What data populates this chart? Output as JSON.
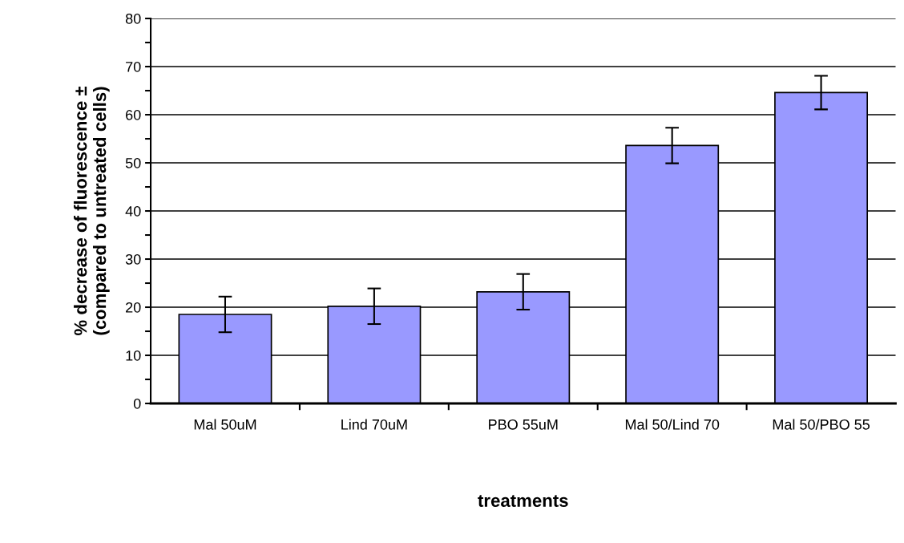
{
  "chart_data": {
    "type": "bar",
    "xlabel": "treatments",
    "ylabel": "% decrease of fluorescence ±\n(compared to untreated cells)",
    "categories": [
      "Mal 50uM",
      "Lind 70uM",
      "PBO 55uM",
      "Mal 50/Lind 70",
      "Mal 50/PBO 55"
    ],
    "values": [
      18.5,
      20.2,
      23.2,
      53.6,
      64.6
    ],
    "errors": [
      3.7,
      3.7,
      3.7,
      3.7,
      3.5
    ],
    "color": "#9999ff",
    "ylim": [
      0,
      80
    ],
    "yticks": [
      0,
      {
        "value": 5,
        "label": null
      },
      10,
      {
        "value": 15,
        "label": null
      },
      20,
      {
        "value": 25,
        "label": null
      },
      30,
      {
        "value": 35,
        "label": null
      },
      40,
      {
        "value": 45,
        "label": null
      },
      50,
      {
        "value": 55,
        "label": null
      },
      60,
      {
        "value": 65,
        "label": null
      },
      70,
      {
        "value": 75,
        "label": null
      },
      80
    ],
    "grid": "y"
  }
}
